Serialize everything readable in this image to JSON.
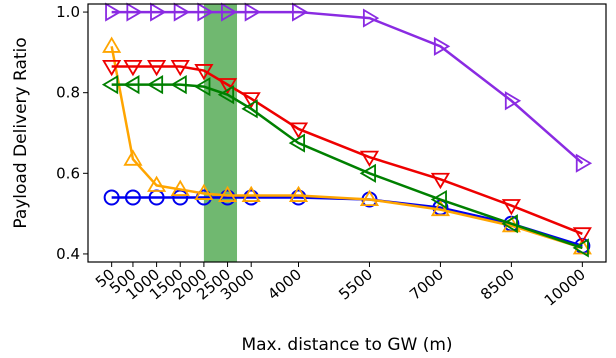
{
  "chart_data": {
    "type": "line",
    "xlabel": "Max. distance to GW (m)",
    "ylabel": "Payload Delivery Ratio",
    "xlim": [
      -450,
      10500
    ],
    "ylim": [
      0.38,
      1.02
    ],
    "x_ticks": [
      50,
      500,
      1000,
      1500,
      2000,
      2500,
      3000,
      4000,
      5500,
      7000,
      8500,
      10000
    ],
    "x_tick_labels": [
      "50",
      "500",
      "1000",
      "1500",
      "2000",
      "2500",
      "3000",
      "4000",
      "5500",
      "7000",
      "8500",
      "10000"
    ],
    "y_ticks": [
      0.4,
      0.6,
      0.8,
      1.0
    ],
    "y_tick_labels": [
      "0.4",
      "0.6",
      "0.8",
      "1.0"
    ],
    "shaded_band": {
      "x_from": 2000,
      "x_to": 2700,
      "color": "#70b870"
    },
    "grid": false,
    "series": [
      {
        "marker": "circle",
        "color": "#0000ee",
        "x": [
          50,
          500,
          1000,
          1500,
          2000,
          2500,
          3000,
          4000,
          5500,
          7000,
          8500,
          10000
        ],
        "y": [
          0.54,
          0.54,
          0.54,
          0.54,
          0.54,
          0.54,
          0.54,
          0.54,
          0.535,
          0.515,
          0.475,
          0.42
        ]
      },
      {
        "marker": "triangle-up",
        "color": "#ffa500",
        "x": [
          50,
          500,
          1000,
          1500,
          2000,
          2500,
          3000,
          4000,
          5500,
          7000,
          8500,
          10000
        ],
        "y": [
          0.915,
          0.635,
          0.57,
          0.56,
          0.55,
          0.545,
          0.545,
          0.545,
          0.535,
          0.51,
          0.47,
          0.415
        ]
      },
      {
        "marker": "triangle-down",
        "color": "#ee0000",
        "x": [
          50,
          500,
          1000,
          1500,
          2000,
          2500,
          3000,
          4000,
          5500,
          7000,
          8500,
          10000
        ],
        "y": [
          0.865,
          0.865,
          0.865,
          0.865,
          0.855,
          0.82,
          0.785,
          0.71,
          0.64,
          0.585,
          0.52,
          0.45
        ]
      },
      {
        "marker": "triangle-left",
        "color": "#008000",
        "x": [
          50,
          500,
          1000,
          1500,
          2000,
          2500,
          3000,
          4000,
          5500,
          7000,
          8500,
          10000
        ],
        "y": [
          0.82,
          0.82,
          0.82,
          0.82,
          0.815,
          0.795,
          0.76,
          0.675,
          0.6,
          0.535,
          0.475,
          0.415
        ]
      },
      {
        "marker": "triangle-right",
        "color": "#8a2be2",
        "x": [
          50,
          500,
          1000,
          1500,
          2000,
          2500,
          3000,
          4000,
          5500,
          7000,
          8500,
          10000
        ],
        "y": [
          1.0,
          1.0,
          1.0,
          1.0,
          1.0,
          1.0,
          1.0,
          1.0,
          0.985,
          0.915,
          0.78,
          0.625
        ]
      }
    ]
  }
}
